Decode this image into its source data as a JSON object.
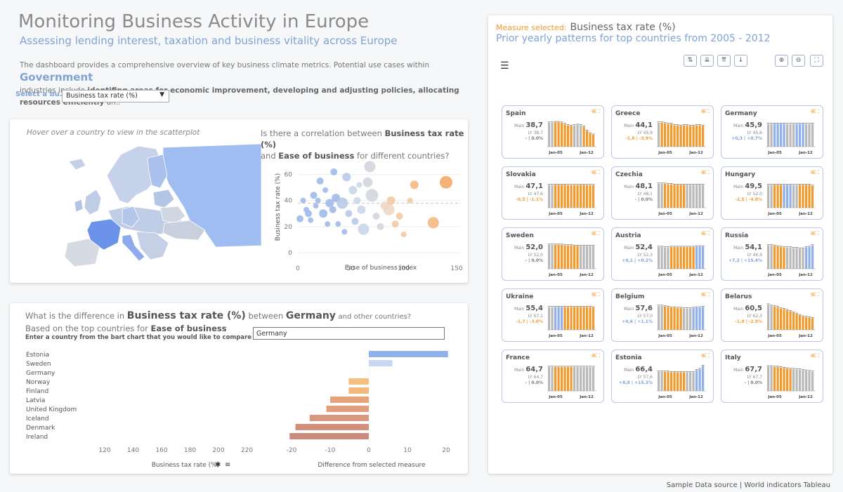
{
  "header": {
    "title": "Monitoring Business Activity in Europe",
    "subtitle": "Assessing lending interest, taxation and business vitality across Europe",
    "desc_1": "The dashboard provides a comprehensive overview of key business climate metrics. Potential use cases within",
    "desc_gov": "Government",
    "desc_2": "industries include",
    "desc_3": "identifing areas for economic improvement, developing and adjusting policies, allocating resources efficiently",
    "desc_4": "an.."
  },
  "selector": {
    "label": "Select a bu..",
    "value": "Business tax rate (%)"
  },
  "map_panel": {
    "hint": "Hover over a country to view in the scatterplot",
    "q1": "Is there a correlation between",
    "q_measure": "Business tax rate (%)",
    "q2": "and",
    "q_ease": "Ease of business",
    "q3": "for different countries?"
  },
  "scatter": {
    "type": "scatter",
    "xlabel": "Ease of business index",
    "ylabel": "Business tax rate (%)",
    "xlim": [
      0,
      150
    ],
    "ylim": [
      0,
      70
    ],
    "xticks": [
      "0",
      "50",
      "100",
      "150"
    ],
    "yticks": [
      "0",
      "20",
      "40",
      "60"
    ],
    "points": [
      {
        "x": 2,
        "y": 26,
        "r": 5,
        "c": "#9bb7e8"
      },
      {
        "x": 5,
        "y": 40,
        "r": 4,
        "c": "#9bb7e8"
      },
      {
        "x": 8,
        "y": 33,
        "r": 4,
        "c": "#9bb7e8"
      },
      {
        "x": 10,
        "y": 30,
        "r": 5,
        "c": "#9bb7e8"
      },
      {
        "x": 12,
        "y": 25,
        "r": 4,
        "c": "#9bb7e8"
      },
      {
        "x": 15,
        "y": 44,
        "r": 5,
        "c": "#9bb7e8"
      },
      {
        "x": 17,
        "y": 36,
        "r": 4,
        "c": "#9bb7e8"
      },
      {
        "x": 19,
        "y": 40,
        "r": 4,
        "c": "#9bb7e8"
      },
      {
        "x": 21,
        "y": 55,
        "r": 5,
        "c": "#9bb7e8"
      },
      {
        "x": 24,
        "y": 30,
        "r": 6,
        "c": "#9bb7e8"
      },
      {
        "x": 26,
        "y": 48,
        "r": 4,
        "c": "#9bb7e8"
      },
      {
        "x": 28,
        "y": 22,
        "r": 4,
        "c": "#9bb7e8"
      },
      {
        "x": 30,
        "y": 38,
        "r": 6,
        "c": "#9bb7e8"
      },
      {
        "x": 33,
        "y": 33,
        "r": 5,
        "c": "#9bb7e8"
      },
      {
        "x": 34,
        "y": 62,
        "r": 5,
        "c": "#9bb7e8"
      },
      {
        "x": 36,
        "y": 42,
        "r": 6,
        "c": "#9bb7e8"
      },
      {
        "x": 38,
        "y": 22,
        "r": 4,
        "c": "#9bb7e8"
      },
      {
        "x": 42,
        "y": 38,
        "r": 8,
        "c": "#b4c6e8"
      },
      {
        "x": 44,
        "y": 16,
        "r": 4,
        "c": "#9bb7e8"
      },
      {
        "x": 46,
        "y": 58,
        "r": 6,
        "c": "#b4c6e8"
      },
      {
        "x": 48,
        "y": 30,
        "r": 5,
        "c": "#b4c6e8"
      },
      {
        "x": 52,
        "y": 48,
        "r": 6,
        "c": "#c7d3e8"
      },
      {
        "x": 54,
        "y": 24,
        "r": 5,
        "c": "#b4c6e8"
      },
      {
        "x": 56,
        "y": 40,
        "r": 5,
        "c": "#c7d3e8"
      },
      {
        "x": 58,
        "y": 52,
        "r": 4,
        "c": "#c7d3e8"
      },
      {
        "x": 60,
        "y": 33,
        "r": 6,
        "c": "#c7d3e8"
      },
      {
        "x": 62,
        "y": 18,
        "r": 8,
        "c": "#c7d3e8"
      },
      {
        "x": 66,
        "y": 54,
        "r": 7,
        "c": "#d0d4db"
      },
      {
        "x": 68,
        "y": 66,
        "r": 8,
        "c": "#d0d4db"
      },
      {
        "x": 70,
        "y": 44,
        "r": 9,
        "c": "#d0d4db"
      },
      {
        "x": 74,
        "y": 28,
        "r": 5,
        "c": "#d0d4db"
      },
      {
        "x": 78,
        "y": 20,
        "r": 5,
        "c": "#d0d4db"
      },
      {
        "x": 82,
        "y": 36,
        "r": 6,
        "c": "#ecd6c4"
      },
      {
        "x": 86,
        "y": 33,
        "r": 8,
        "c": "#ecd6c4"
      },
      {
        "x": 88,
        "y": 40,
        "r": 6,
        "c": "#f3c79e"
      },
      {
        "x": 92,
        "y": 22,
        "r": 5,
        "c": "#f3c79e"
      },
      {
        "x": 96,
        "y": 28,
        "r": 5,
        "c": "#f3c79e"
      },
      {
        "x": 100,
        "y": 14,
        "r": 4,
        "c": "#f3c79e"
      },
      {
        "x": 106,
        "y": 40,
        "r": 4,
        "c": "#f3c79e"
      },
      {
        "x": 110,
        "y": 52,
        "r": 6,
        "c": "#f3b47a"
      },
      {
        "x": 128,
        "y": 23,
        "r": 8,
        "c": "#f3b47a"
      },
      {
        "x": 140,
        "y": 54,
        "r": 9,
        "c": "#f3a55e"
      }
    ]
  },
  "diff_panel": {
    "q1": "What is the difference in",
    "q_measure": "Business tax rate (%)",
    "q2": "between",
    "q_country": "Germany",
    "q3": "and other countries?",
    "line2a": "Based on the top countries for",
    "line2b": "Ease of business",
    "instruction": "Enter a country from the bart chart that you would like to compare",
    "input_value": "Germany"
  },
  "diff_chart": {
    "type": "bar",
    "categories": [
      "Estonia",
      "Sweden",
      "Germany",
      "Norway",
      "Finland",
      "Latvia",
      "United Kingdom",
      "Iceland",
      "Denmark",
      "Ireland"
    ],
    "values": [
      20.5,
      6.1,
      0,
      -5.2,
      -5.2,
      -10,
      -11,
      -15.3,
      -19,
      -20.5
    ],
    "colors": [
      "#8fb0ea",
      "#c7d6f2",
      "#eef2f8",
      "#f6bf7f",
      "#f3b97a",
      "#e7a27a",
      "#e39f7c",
      "#d9977c",
      "#d38f7b",
      "#cd8a7b"
    ],
    "xlim": [
      -22,
      22
    ],
    "xticks": [
      -20,
      -10,
      0,
      10,
      20
    ],
    "xlabel": "Difference from selected measure",
    "left_ticks": [
      "120",
      "140",
      "160",
      "180",
      "200",
      "220"
    ],
    "left_xlabel": "Business tax rate (%)"
  },
  "right_panel": {
    "measure_label": "Measure selected:",
    "measure_value": "Business tax rate (%)",
    "subtitle": "Prior yearly patterns for top countries from 2005 - 2012"
  },
  "cards": [
    {
      "country": "Spain",
      "main": "38,7",
      "ly": "38,7",
      "diff": "- | 0.0%",
      "tone": "neutral",
      "bars": [
        0,
        0,
        1,
        1,
        1,
        1,
        1,
        1,
        0,
        0,
        0,
        1,
        1,
        1,
        1
      ],
      "heights": [
        0.9,
        0.9,
        0.92,
        0.92,
        0.9,
        0.85,
        0.8,
        0.78,
        0.8,
        0.82,
        0.8,
        0.75,
        0.6,
        0.5,
        0.45
      ]
    },
    {
      "country": "Greece",
      "main": "44,1",
      "ly": "45,9",
      "diff": "-1,8 | -3.9%",
      "tone": "neg",
      "bars": [
        0,
        1,
        1,
        1,
        1,
        1,
        1,
        1,
        1,
        1,
        1,
        1,
        1,
        1,
        1
      ],
      "heights": [
        0.9,
        0.9,
        0.88,
        0.85,
        0.85,
        0.8,
        0.8,
        0.78,
        0.8,
        0.8,
        0.78,
        0.78,
        0.8,
        0.8,
        0.78
      ]
    },
    {
      "country": "Germany",
      "main": "45,9",
      "ly": "45,6",
      "diff": "+0,3 | +0.7%",
      "tone": "pos",
      "bars": [
        0,
        0,
        2,
        2,
        2,
        2,
        0,
        0,
        0,
        2,
        2,
        2,
        0,
        0,
        0
      ],
      "heights": [
        0.85,
        0.85,
        0.86,
        0.86,
        0.86,
        0.86,
        0.85,
        0.85,
        0.85,
        0.85,
        0.86,
        0.86,
        0.85,
        0.85,
        0.86
      ]
    },
    {
      "country": "Slovakia",
      "main": "47,1",
      "ly": "47,6",
      "diff": "-0,5 | -1.1%",
      "tone": "neg",
      "bars": [
        0,
        0,
        1,
        1,
        1,
        1,
        1,
        1,
        1,
        1,
        1,
        1,
        1,
        1,
        1
      ],
      "heights": [
        0.85,
        0.85,
        0.86,
        0.86,
        0.86,
        0.86,
        0.85,
        0.85,
        0.85,
        0.85,
        0.86,
        0.86,
        0.85,
        0.85,
        0.85
      ]
    },
    {
      "country": "Czechia",
      "main": "48,1",
      "ly": "48,1",
      "diff": "- | 0.0%",
      "tone": "neutral",
      "bars": [
        0,
        0,
        1,
        1,
        1,
        1,
        1,
        1,
        1,
        0,
        0,
        0,
        0,
        0,
        0
      ],
      "heights": [
        0.9,
        0.9,
        0.9,
        0.88,
        0.88,
        0.86,
        0.86,
        0.86,
        0.86,
        0.86,
        0.86,
        0.86,
        0.86,
        0.86,
        0.86
      ]
    },
    {
      "country": "Hungary",
      "main": "49,5",
      "ly": "52,0",
      "diff": "-2,5 | -4.8%",
      "tone": "neg",
      "bars": [
        0,
        0,
        1,
        1,
        1,
        2,
        2,
        2,
        0,
        0,
        1,
        1,
        1,
        1,
        1
      ],
      "heights": [
        0.85,
        0.85,
        0.86,
        0.86,
        0.86,
        0.86,
        0.86,
        0.86,
        0.85,
        0.85,
        0.86,
        0.86,
        0.86,
        0.86,
        0.82
      ]
    },
    {
      "country": "Sweden",
      "main": "52,0",
      "ly": "52,0",
      "diff": "- | 0.0%",
      "tone": "neutral",
      "bars": [
        0,
        0,
        1,
        1,
        1,
        1,
        1,
        1,
        1,
        1,
        0,
        0,
        0,
        0,
        0
      ],
      "heights": [
        0.9,
        0.9,
        0.9,
        0.9,
        0.9,
        0.88,
        0.88,
        0.88,
        0.86,
        0.86,
        0.86,
        0.86,
        0.86,
        0.86,
        0.86
      ]
    },
    {
      "country": "Austria",
      "main": "52,4",
      "ly": "52,3",
      "diff": "+0,1 | +0.2%",
      "tone": "pos",
      "bars": [
        0,
        0,
        0,
        0,
        1,
        1,
        1,
        1,
        1,
        1,
        1,
        1,
        2,
        2,
        2
      ],
      "heights": [
        0.82,
        0.82,
        0.8,
        0.8,
        0.82,
        0.82,
        0.82,
        0.82,
        0.82,
        0.82,
        0.82,
        0.82,
        0.84,
        0.84,
        0.84
      ]
    },
    {
      "country": "Russia",
      "main": "54,1",
      "ly": "46,9",
      "diff": "+7,2 | +15.4%",
      "tone": "pos",
      "bars": [
        0,
        0,
        1,
        1,
        1,
        1,
        0,
        0,
        0,
        0,
        0,
        0,
        2,
        2,
        2
      ],
      "heights": [
        0.88,
        0.88,
        0.86,
        0.84,
        0.82,
        0.8,
        0.8,
        0.8,
        0.78,
        0.78,
        0.76,
        0.76,
        0.8,
        0.82,
        0.88
      ]
    },
    {
      "country": "Ukraine",
      "main": "55,4",
      "ly": "57,1",
      "diff": "-1,7 | -3.0%",
      "tone": "neg",
      "bars": [
        0,
        0,
        2,
        2,
        2,
        1,
        1,
        1,
        1,
        1,
        1,
        1,
        1,
        1,
        1
      ],
      "heights": [
        0.85,
        0.85,
        0.86,
        0.86,
        0.86,
        0.86,
        0.86,
        0.86,
        0.86,
        0.86,
        0.86,
        0.86,
        0.86,
        0.86,
        0.84
      ]
    },
    {
      "country": "Belgium",
      "main": "57,6",
      "ly": "57,0",
      "diff": "+0,6 | +1.1%",
      "tone": "pos",
      "bars": [
        0,
        0,
        1,
        1,
        1,
        1,
        1,
        1,
        0,
        0,
        0,
        2,
        2,
        2,
        2
      ],
      "heights": [
        0.9,
        0.9,
        0.88,
        0.86,
        0.84,
        0.84,
        0.82,
        0.82,
        0.8,
        0.8,
        0.8,
        0.82,
        0.84,
        0.84,
        0.86
      ]
    },
    {
      "country": "Belarus",
      "main": "60,5",
      "ly": "62,3",
      "diff": "-1,8 | -2.9%",
      "tone": "neg",
      "bars": [
        0,
        0,
        1,
        1,
        1,
        1,
        1,
        1,
        1,
        1,
        1,
        1,
        1,
        1,
        1
      ],
      "heights": [
        0.95,
        0.9,
        0.88,
        0.85,
        0.8,
        0.78,
        0.74,
        0.7,
        0.65,
        0.6,
        0.55,
        0.5,
        0.48,
        0.46,
        0.44
      ]
    },
    {
      "country": "France",
      "main": "64,7",
      "ly": "64,7",
      "diff": "- | 0.0%",
      "tone": "neutral",
      "bars": [
        0,
        0,
        1,
        1,
        1,
        1,
        1,
        1,
        0,
        0,
        0,
        0,
        0,
        0,
        0
      ],
      "heights": [
        0.9,
        0.9,
        0.9,
        0.9,
        0.9,
        0.9,
        0.9,
        0.9,
        0.9,
        0.9,
        0.9,
        0.9,
        0.9,
        0.9,
        0.9
      ]
    },
    {
      "country": "Estonia",
      "main": "66,4",
      "ly": "57,6",
      "diff": "+8,8 | +15.3%",
      "tone": "pos",
      "bars": [
        0,
        0,
        1,
        1,
        1,
        1,
        1,
        1,
        1,
        0,
        0,
        0,
        2,
        2,
        2
      ],
      "heights": [
        0.72,
        0.72,
        0.72,
        0.72,
        0.7,
        0.7,
        0.7,
        0.7,
        0.7,
        0.7,
        0.7,
        0.7,
        0.78,
        0.82,
        0.94
      ]
    },
    {
      "country": "Italy",
      "main": "67,7",
      "ly": "67,7",
      "diff": "- | 0.0%",
      "tone": "neutral",
      "bars": [
        0,
        0,
        1,
        1,
        1,
        1,
        1,
        1,
        0,
        0,
        0,
        0,
        0,
        0,
        0
      ],
      "heights": [
        0.92,
        0.92,
        0.9,
        0.9,
        0.88,
        0.86,
        0.84,
        0.82,
        0.82,
        0.8,
        0.8,
        0.78,
        0.76,
        0.74,
        0.72
      ]
    }
  ],
  "card_labels": {
    "main": "Main",
    "ly": "LY",
    "start": "Jan-05",
    "end": "Jan-12"
  },
  "colors": {
    "orange": "#f19a2b",
    "blue": "#8fb0ea",
    "gray": "#b9b9b9",
    "neg": "#f0a030",
    "pos": "#7fa3d6"
  },
  "footer": "Sample Data source | World indicators  Tableau"
}
